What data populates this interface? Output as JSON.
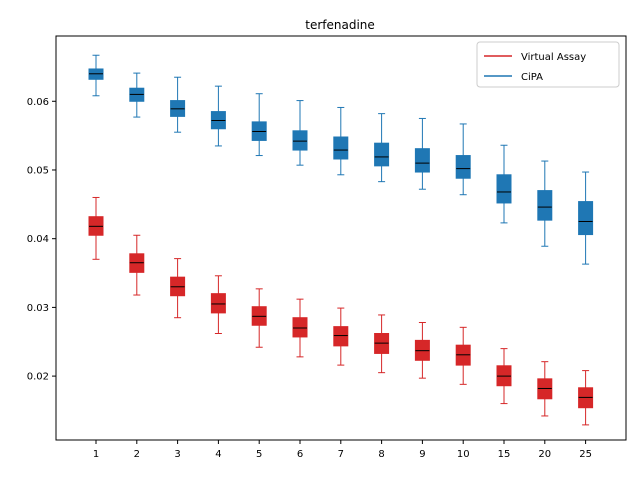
{
  "chart_data": {
    "type": "boxplot",
    "title": "terfenadine",
    "xlabel": "",
    "ylabel": "",
    "categories": [
      "1",
      "2",
      "3",
      "4",
      "5",
      "6",
      "7",
      "8",
      "9",
      "10",
      "15",
      "20",
      "25"
    ],
    "ylim": [
      0.0107,
      0.0695
    ],
    "yticks": [
      0.02,
      0.03,
      0.04,
      0.05,
      0.06
    ],
    "ytick_labels": [
      "0.02",
      "0.03",
      "0.04",
      "0.05",
      "0.06"
    ],
    "grid": false,
    "legend_position": "top-right",
    "series": [
      {
        "name": "Virtual Assay",
        "color": "#d62728",
        "boxes": [
          {
            "whislo": 0.037,
            "q1": 0.0405,
            "med": 0.0418,
            "q3": 0.0432,
            "whishi": 0.046
          },
          {
            "whislo": 0.0318,
            "q1": 0.0351,
            "med": 0.0365,
            "q3": 0.0378,
            "whishi": 0.0405
          },
          {
            "whislo": 0.0285,
            "q1": 0.0317,
            "med": 0.033,
            "q3": 0.0344,
            "whishi": 0.0371
          },
          {
            "whislo": 0.0262,
            "q1": 0.0292,
            "med": 0.0305,
            "q3": 0.032,
            "whishi": 0.0346
          },
          {
            "whislo": 0.0242,
            "q1": 0.0274,
            "med": 0.0287,
            "q3": 0.0301,
            "whishi": 0.0327
          },
          {
            "whislo": 0.0228,
            "q1": 0.0257,
            "med": 0.027,
            "q3": 0.0285,
            "whishi": 0.0312
          },
          {
            "whislo": 0.0216,
            "q1": 0.0244,
            "med": 0.0259,
            "q3": 0.0272,
            "whishi": 0.0299
          },
          {
            "whislo": 0.0205,
            "q1": 0.0233,
            "med": 0.0248,
            "q3": 0.0262,
            "whishi": 0.0289
          },
          {
            "whislo": 0.0197,
            "q1": 0.0223,
            "med": 0.0237,
            "q3": 0.0252,
            "whishi": 0.0278
          },
          {
            "whislo": 0.0188,
            "q1": 0.0216,
            "med": 0.0231,
            "q3": 0.0245,
            "whishi": 0.0271
          },
          {
            "whislo": 0.016,
            "q1": 0.0186,
            "med": 0.02,
            "q3": 0.0215,
            "whishi": 0.024
          },
          {
            "whislo": 0.0142,
            "q1": 0.0167,
            "med": 0.0182,
            "q3": 0.0196,
            "whishi": 0.0221
          },
          {
            "whislo": 0.0129,
            "q1": 0.0154,
            "med": 0.0169,
            "q3": 0.0183,
            "whishi": 0.0208
          }
        ]
      },
      {
        "name": "CiPA",
        "color": "#1f77b4",
        "boxes": [
          {
            "whislo": 0.0608,
            "q1": 0.0632,
            "med": 0.064,
            "q3": 0.0647,
            "whishi": 0.0667
          },
          {
            "whislo": 0.0577,
            "q1": 0.06,
            "med": 0.061,
            "q3": 0.0619,
            "whishi": 0.0641
          },
          {
            "whislo": 0.0555,
            "q1": 0.0578,
            "med": 0.0589,
            "q3": 0.0601,
            "whishi": 0.0635
          },
          {
            "whislo": 0.0535,
            "q1": 0.056,
            "med": 0.0572,
            "q3": 0.0585,
            "whishi": 0.0622
          },
          {
            "whislo": 0.0521,
            "q1": 0.0543,
            "med": 0.0556,
            "q3": 0.057,
            "whishi": 0.0611
          },
          {
            "whislo": 0.0507,
            "q1": 0.0529,
            "med": 0.0542,
            "q3": 0.0557,
            "whishi": 0.0601
          },
          {
            "whislo": 0.0493,
            "q1": 0.0516,
            "med": 0.0529,
            "q3": 0.0548,
            "whishi": 0.0591
          },
          {
            "whislo": 0.0483,
            "q1": 0.0506,
            "med": 0.0519,
            "q3": 0.0539,
            "whishi": 0.0582
          },
          {
            "whislo": 0.0472,
            "q1": 0.0497,
            "med": 0.051,
            "q3": 0.0531,
            "whishi": 0.0575
          },
          {
            "whislo": 0.0464,
            "q1": 0.0488,
            "med": 0.0502,
            "q3": 0.0521,
            "whishi": 0.0567
          },
          {
            "whislo": 0.0423,
            "q1": 0.0452,
            "med": 0.0468,
            "q3": 0.0493,
            "whishi": 0.0536
          },
          {
            "whislo": 0.0389,
            "q1": 0.0427,
            "med": 0.0446,
            "q3": 0.047,
            "whishi": 0.0513
          },
          {
            "whislo": 0.0363,
            "q1": 0.0406,
            "med": 0.0425,
            "q3": 0.0454,
            "whishi": 0.0497
          }
        ]
      }
    ],
    "colors": {
      "median_line": "#000000",
      "axes": "#000000",
      "background": "#ffffff"
    }
  }
}
